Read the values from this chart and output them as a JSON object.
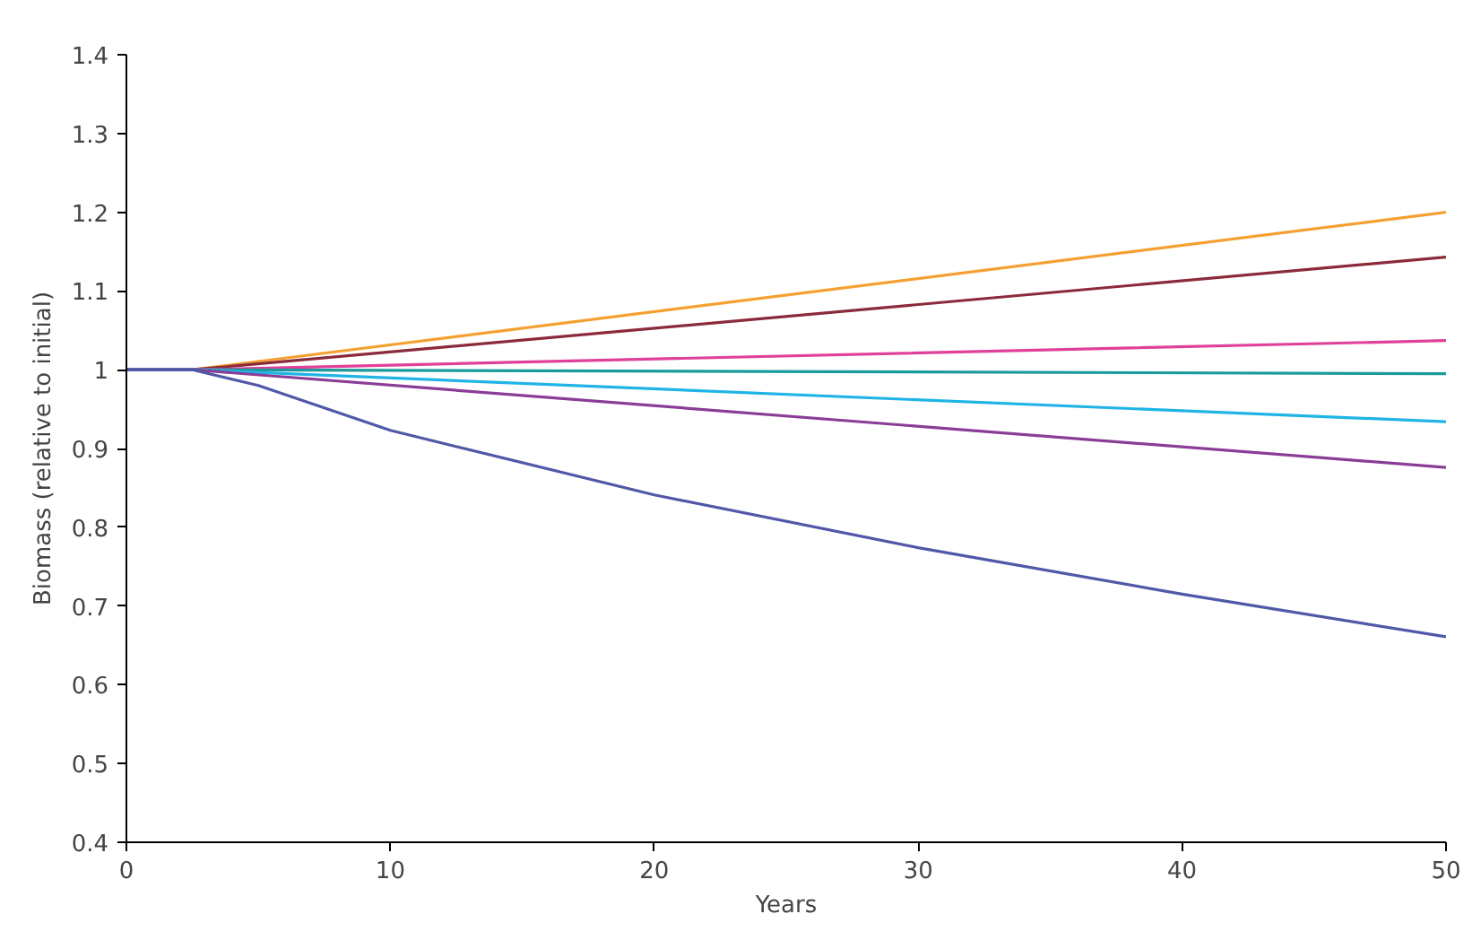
{
  "chart_data": {
    "type": "line",
    "xlabel": "Years",
    "ylabel": "Biomass (relative to initial)",
    "xlim": [
      0,
      50
    ],
    "ylim": [
      0.4,
      1.4
    ],
    "xticks": [
      0,
      10,
      20,
      30,
      40,
      50
    ],
    "yticks": [
      0.4,
      0.5,
      0.6,
      0.7,
      0.8,
      0.9,
      1,
      1.1,
      1.2,
      1.3,
      1.4
    ],
    "grid": false,
    "marker": "none",
    "line_style": "solid",
    "series": [
      {
        "color": "#f5a031",
        "x": [
          0,
          2.5,
          50
        ],
        "values": [
          1,
          1,
          1.2
        ]
      },
      {
        "color": "#8b2a3a",
        "x": [
          0,
          2.5,
          50
        ],
        "values": [
          1,
          1,
          1.143
        ]
      },
      {
        "color": "#e0409a",
        "x": [
          0,
          2.5,
          50
        ],
        "values": [
          1,
          1,
          1.037
        ]
      },
      {
        "color": "#1a9a9a",
        "x": [
          0,
          2.5,
          50
        ],
        "values": [
          1,
          1,
          0.995
        ]
      },
      {
        "color": "#20b4e6",
        "x": [
          0,
          2.5,
          50
        ],
        "values": [
          1,
          1,
          0.934
        ]
      },
      {
        "color": "#8a3d96",
        "x": [
          0,
          2.5,
          50
        ],
        "values": [
          1,
          1,
          0.876
        ]
      },
      {
        "color": "#5058a8",
        "x": [
          0,
          2.5,
          5,
          10,
          20,
          30,
          40,
          50
        ],
        "values": [
          1,
          1,
          0.98,
          0.923,
          0.841,
          0.774,
          0.715,
          0.661
        ]
      }
    ]
  }
}
